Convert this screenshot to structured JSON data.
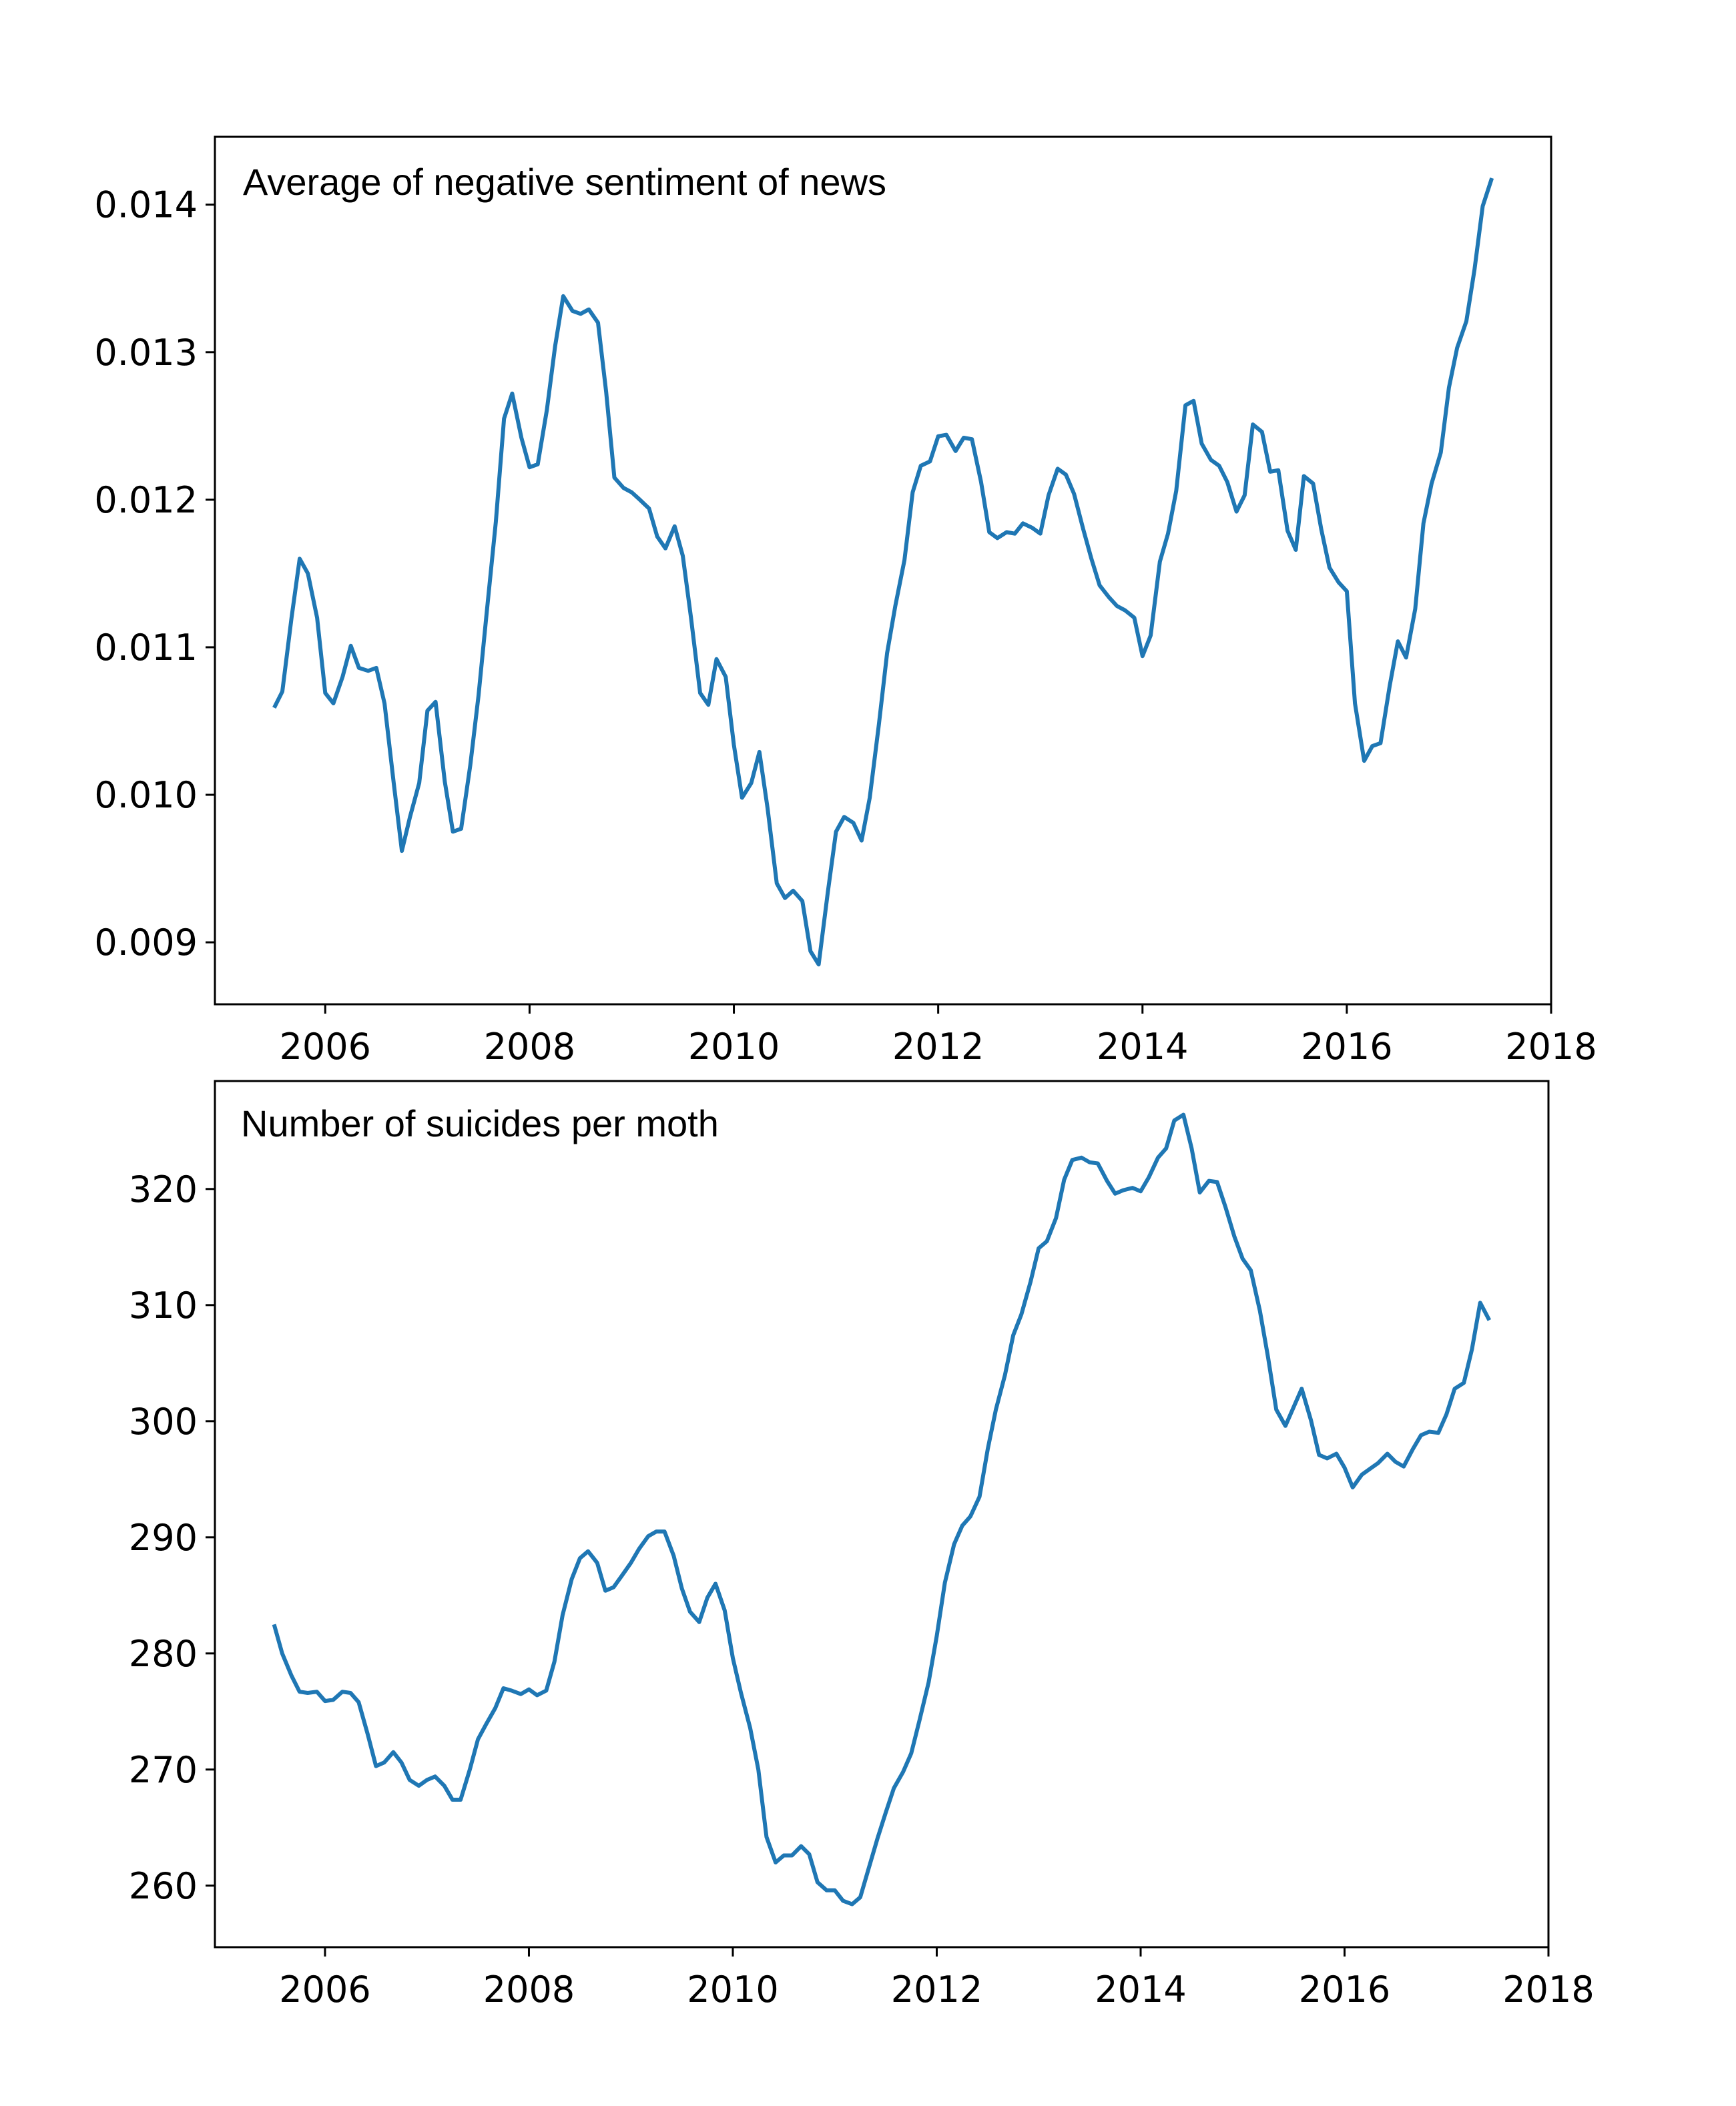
{
  "chart_data": [
    {
      "type": "line",
      "title": "Average of negative sentiment of news",
      "xlabel": "",
      "ylabel": "",
      "xlim": [
        2004.92,
        2018.0
      ],
      "ylim": [
        0.00858,
        0.01446
      ],
      "x_ticks": [
        2006,
        2008,
        2010,
        2012,
        2014,
        2016,
        2018
      ],
      "y_ticks": [
        0.009,
        0.01,
        0.011,
        0.012,
        0.013,
        0.014
      ],
      "y_tick_labels": [
        "0.009",
        "0.010",
        "0.011",
        "0.012",
        "0.013",
        "0.014"
      ],
      "x_tick_labels": [
        "2006",
        "2008",
        "2010",
        "2012",
        "2014",
        "2016",
        "2018"
      ],
      "grid": false,
      "color": "#1f77b4",
      "series": [
        {
          "x": [
            2005.5,
            2005.58,
            2005.67,
            2005.75,
            2005.83,
            2005.92,
            2006.0,
            2006.08,
            2006.17,
            2006.25,
            2006.33,
            2006.42,
            2006.5,
            2006.58,
            2006.67,
            2006.75,
            2006.83,
            2006.92,
            2007.0,
            2007.08,
            2007.17,
            2007.25,
            2007.33,
            2007.42,
            2007.5,
            2007.58,
            2007.67,
            2007.75,
            2007.83,
            2007.92,
            2008.0,
            2008.08,
            2008.17,
            2008.25,
            2008.33,
            2008.42,
            2008.5,
            2008.58,
            2008.67,
            2008.75,
            2008.83,
            2008.92,
            2009.0,
            2009.08,
            2009.17,
            2009.25,
            2009.33,
            2009.42,
            2009.5,
            2009.58,
            2009.67,
            2009.75,
            2009.83,
            2009.92,
            2010.0,
            2010.08,
            2010.17,
            2010.25,
            2010.33,
            2010.42,
            2010.5,
            2010.58,
            2010.67,
            2010.75,
            2010.83,
            2010.92,
            2011.0,
            2011.08,
            2011.17,
            2011.25,
            2011.33,
            2011.42,
            2011.5,
            2011.58,
            2011.67,
            2011.75,
            2011.83,
            2011.92,
            2012.0,
            2012.08,
            2012.17,
            2012.25,
            2012.33,
            2012.42,
            2012.5,
            2012.58,
            2012.67,
            2012.75,
            2012.83,
            2012.92,
            2013.0,
            2013.08,
            2013.17,
            2013.25,
            2013.33,
            2013.42,
            2013.5,
            2013.58,
            2013.67,
            2013.75,
            2013.83,
            2013.92,
            2014.0,
            2014.08,
            2014.17,
            2014.25,
            2014.33,
            2014.42,
            2014.5,
            2014.58,
            2014.67,
            2014.75,
            2014.83,
            2014.92,
            2015.0,
            2015.08,
            2015.17,
            2015.25,
            2015.33,
            2015.42,
            2015.5,
            2015.58,
            2015.67,
            2015.75,
            2015.83,
            2015.92,
            2016.0,
            2016.08,
            2016.17,
            2016.25,
            2016.33,
            2016.42,
            2016.5,
            2016.58,
            2016.67,
            2016.75,
            2016.83,
            2016.92,
            2017.0,
            2017.08,
            2017.17,
            2017.25,
            2017.33,
            2017.42
          ],
          "values": [
            0.01059,
            0.0107,
            0.0112,
            0.0116,
            0.0115,
            0.0112,
            0.01069,
            0.01062,
            0.0108,
            0.01101,
            0.01086,
            0.01084,
            0.01086,
            0.01062,
            0.01008,
            0.00962,
            0.00985,
            0.01008,
            0.01057,
            0.01063,
            0.01009,
            0.00975,
            0.00977,
            0.0102,
            0.01067,
            0.01123,
            0.01185,
            0.01255,
            0.01272,
            0.01242,
            0.01222,
            0.01224,
            0.01261,
            0.01304,
            0.01338,
            0.01328,
            0.01326,
            0.01329,
            0.0132,
            0.01273,
            0.01215,
            0.01208,
            0.01205,
            0.012,
            0.01194,
            0.01175,
            0.01167,
            0.01182,
            0.01162,
            0.0112,
            0.01069,
            0.01061,
            0.01092,
            0.0108,
            0.01034,
            0.00998,
            0.01008,
            0.01029,
            0.00991,
            0.0094,
            0.0093,
            0.00935,
            0.00928,
            0.00894,
            0.00885,
            0.00934,
            0.00975,
            0.00985,
            0.00981,
            0.00969,
            0.00998,
            0.01048,
            0.01096,
            0.01128,
            0.01159,
            0.01205,
            0.01223,
            0.01226,
            0.01243,
            0.01244,
            0.01233,
            0.01242,
            0.01241,
            0.01212,
            0.01178,
            0.01174,
            0.01178,
            0.01177,
            0.01184,
            0.01181,
            0.01177,
            0.01203,
            0.01221,
            0.01217,
            0.01204,
            0.0118,
            0.0116,
            0.01142,
            0.01134,
            0.01128,
            0.01125,
            0.0112,
            0.01094,
            0.01108,
            0.01158,
            0.01177,
            0.01206,
            0.01264,
            0.01267,
            0.01238,
            0.01227,
            0.01223,
            0.01212,
            0.01192,
            0.01203,
            0.01251,
            0.01246,
            0.01219,
            0.0122,
            0.01179,
            0.01166,
            0.01216,
            0.01211,
            0.0118,
            0.01154,
            0.01144,
            0.01138,
            0.01062,
            0.01023,
            0.01033,
            0.01035,
            0.01074,
            0.01104,
            0.01093,
            0.01126,
            0.01184,
            0.01211,
            0.01232,
            0.01276,
            0.01303,
            0.01321,
            0.01356,
            0.01399,
            0.01418
          ]
        }
      ]
    },
    {
      "type": "line",
      "title": "Number of suicides per moth",
      "xlabel": "",
      "ylabel": "",
      "xlim": [
        2004.92,
        2018.0
      ],
      "ylim": [
        254.7,
        329.3
      ],
      "x_ticks": [
        2006,
        2008,
        2010,
        2012,
        2014,
        2016,
        2018
      ],
      "y_ticks": [
        260,
        270,
        280,
        290,
        300,
        310,
        320
      ],
      "y_tick_labels": [
        "260",
        "270",
        "280",
        "290",
        "300",
        "310",
        "320"
      ],
      "x_tick_labels": [
        "2006",
        "2008",
        "2010",
        "2012",
        "2014",
        "2016",
        "2018"
      ],
      "grid": false,
      "color": "#1f77b4",
      "series": [
        {
          "x": [
            2005.5,
            2005.58,
            2005.67,
            2005.75,
            2005.83,
            2005.92,
            2006.0,
            2006.08,
            2006.17,
            2006.25,
            2006.33,
            2006.42,
            2006.5,
            2006.58,
            2006.67,
            2006.75,
            2006.83,
            2006.92,
            2007.0,
            2007.08,
            2007.17,
            2007.25,
            2007.33,
            2007.42,
            2007.5,
            2007.58,
            2007.67,
            2007.75,
            2007.83,
            2007.92,
            2008.0,
            2008.08,
            2008.17,
            2008.25,
            2008.33,
            2008.42,
            2008.5,
            2008.58,
            2008.67,
            2008.75,
            2008.83,
            2008.92,
            2009.0,
            2009.08,
            2009.17,
            2009.25,
            2009.33,
            2009.42,
            2009.5,
            2009.58,
            2009.67,
            2009.75,
            2009.83,
            2009.92,
            2010.0,
            2010.08,
            2010.17,
            2010.25,
            2010.33,
            2010.42,
            2010.5,
            2010.58,
            2010.67,
            2010.75,
            2010.83,
            2010.92,
            2011.0,
            2011.08,
            2011.17,
            2011.25,
            2011.33,
            2011.42,
            2011.5,
            2011.58,
            2011.67,
            2011.75,
            2011.83,
            2011.92,
            2012.0,
            2012.08,
            2012.17,
            2012.25,
            2012.33,
            2012.42,
            2012.5,
            2012.58,
            2012.67,
            2012.75,
            2012.83,
            2012.92,
            2013.0,
            2013.08,
            2013.17,
            2013.25,
            2013.33,
            2013.42,
            2013.5,
            2013.58,
            2013.67,
            2013.75,
            2013.83,
            2013.92,
            2014.0,
            2014.08,
            2014.17,
            2014.25,
            2014.33,
            2014.42,
            2014.5,
            2014.58,
            2014.67,
            2014.75,
            2014.83,
            2014.92,
            2015.0,
            2015.08,
            2015.17,
            2015.25,
            2015.33,
            2015.42,
            2015.5,
            2015.58,
            2015.67,
            2015.75,
            2015.83,
            2015.92,
            2016.0,
            2016.08,
            2016.17,
            2016.25,
            2016.33,
            2016.42,
            2016.5,
            2016.58,
            2016.67,
            2016.75,
            2016.83,
            2016.92,
            2017.0,
            2017.08,
            2017.17,
            2017.25,
            2017.33,
            2017.42
          ],
          "values": [
            282.5,
            280.0,
            278.1,
            276.7,
            276.6,
            276.7,
            275.9,
            276.0,
            276.7,
            276.6,
            275.8,
            273.0,
            270.3,
            270.6,
            271.5,
            270.6,
            269.1,
            268.6,
            269.1,
            269.4,
            268.6,
            267.4,
            267.4,
            270.0,
            272.6,
            273.9,
            275.3,
            277.0,
            276.8,
            276.5,
            276.9,
            276.4,
            276.8,
            279.3,
            283.3,
            286.4,
            288.2,
            288.8,
            287.8,
            285.4,
            285.7,
            286.8,
            287.8,
            289.0,
            290.1,
            290.5,
            290.5,
            288.4,
            285.6,
            283.6,
            282.7,
            284.8,
            286.0,
            283.7,
            279.6,
            276.6,
            273.6,
            270.0,
            264.2,
            262.0,
            262.6,
            262.6,
            263.4,
            262.7,
            260.3,
            259.6,
            259.6,
            258.7,
            258.4,
            259.0,
            261.4,
            264.1,
            266.3,
            268.4,
            269.8,
            271.4,
            274.2,
            277.5,
            281.5,
            286.1,
            289.4,
            291.0,
            291.8,
            293.5,
            297.6,
            301.0,
            304.0,
            307.4,
            309.2,
            312.0,
            314.9,
            315.5,
            317.5,
            320.8,
            322.5,
            322.7,
            322.3,
            322.2,
            320.7,
            319.6,
            319.9,
            320.1,
            319.8,
            321.0,
            322.7,
            323.5,
            325.9,
            326.4,
            323.5,
            319.7,
            320.7,
            320.6,
            318.5,
            315.9,
            314.0,
            313.0,
            309.5,
            305.5,
            301.0,
            299.6,
            301.2,
            302.8,
            300.1,
            297.1,
            296.8,
            297.2,
            296.0,
            294.3,
            295.4,
            295.9,
            296.4,
            297.2,
            296.5,
            296.1,
            297.6,
            298.8,
            299.1,
            299.0,
            300.6,
            302.8,
            303.3,
            306.2,
            310.2,
            308.7
          ]
        }
      ]
    }
  ]
}
